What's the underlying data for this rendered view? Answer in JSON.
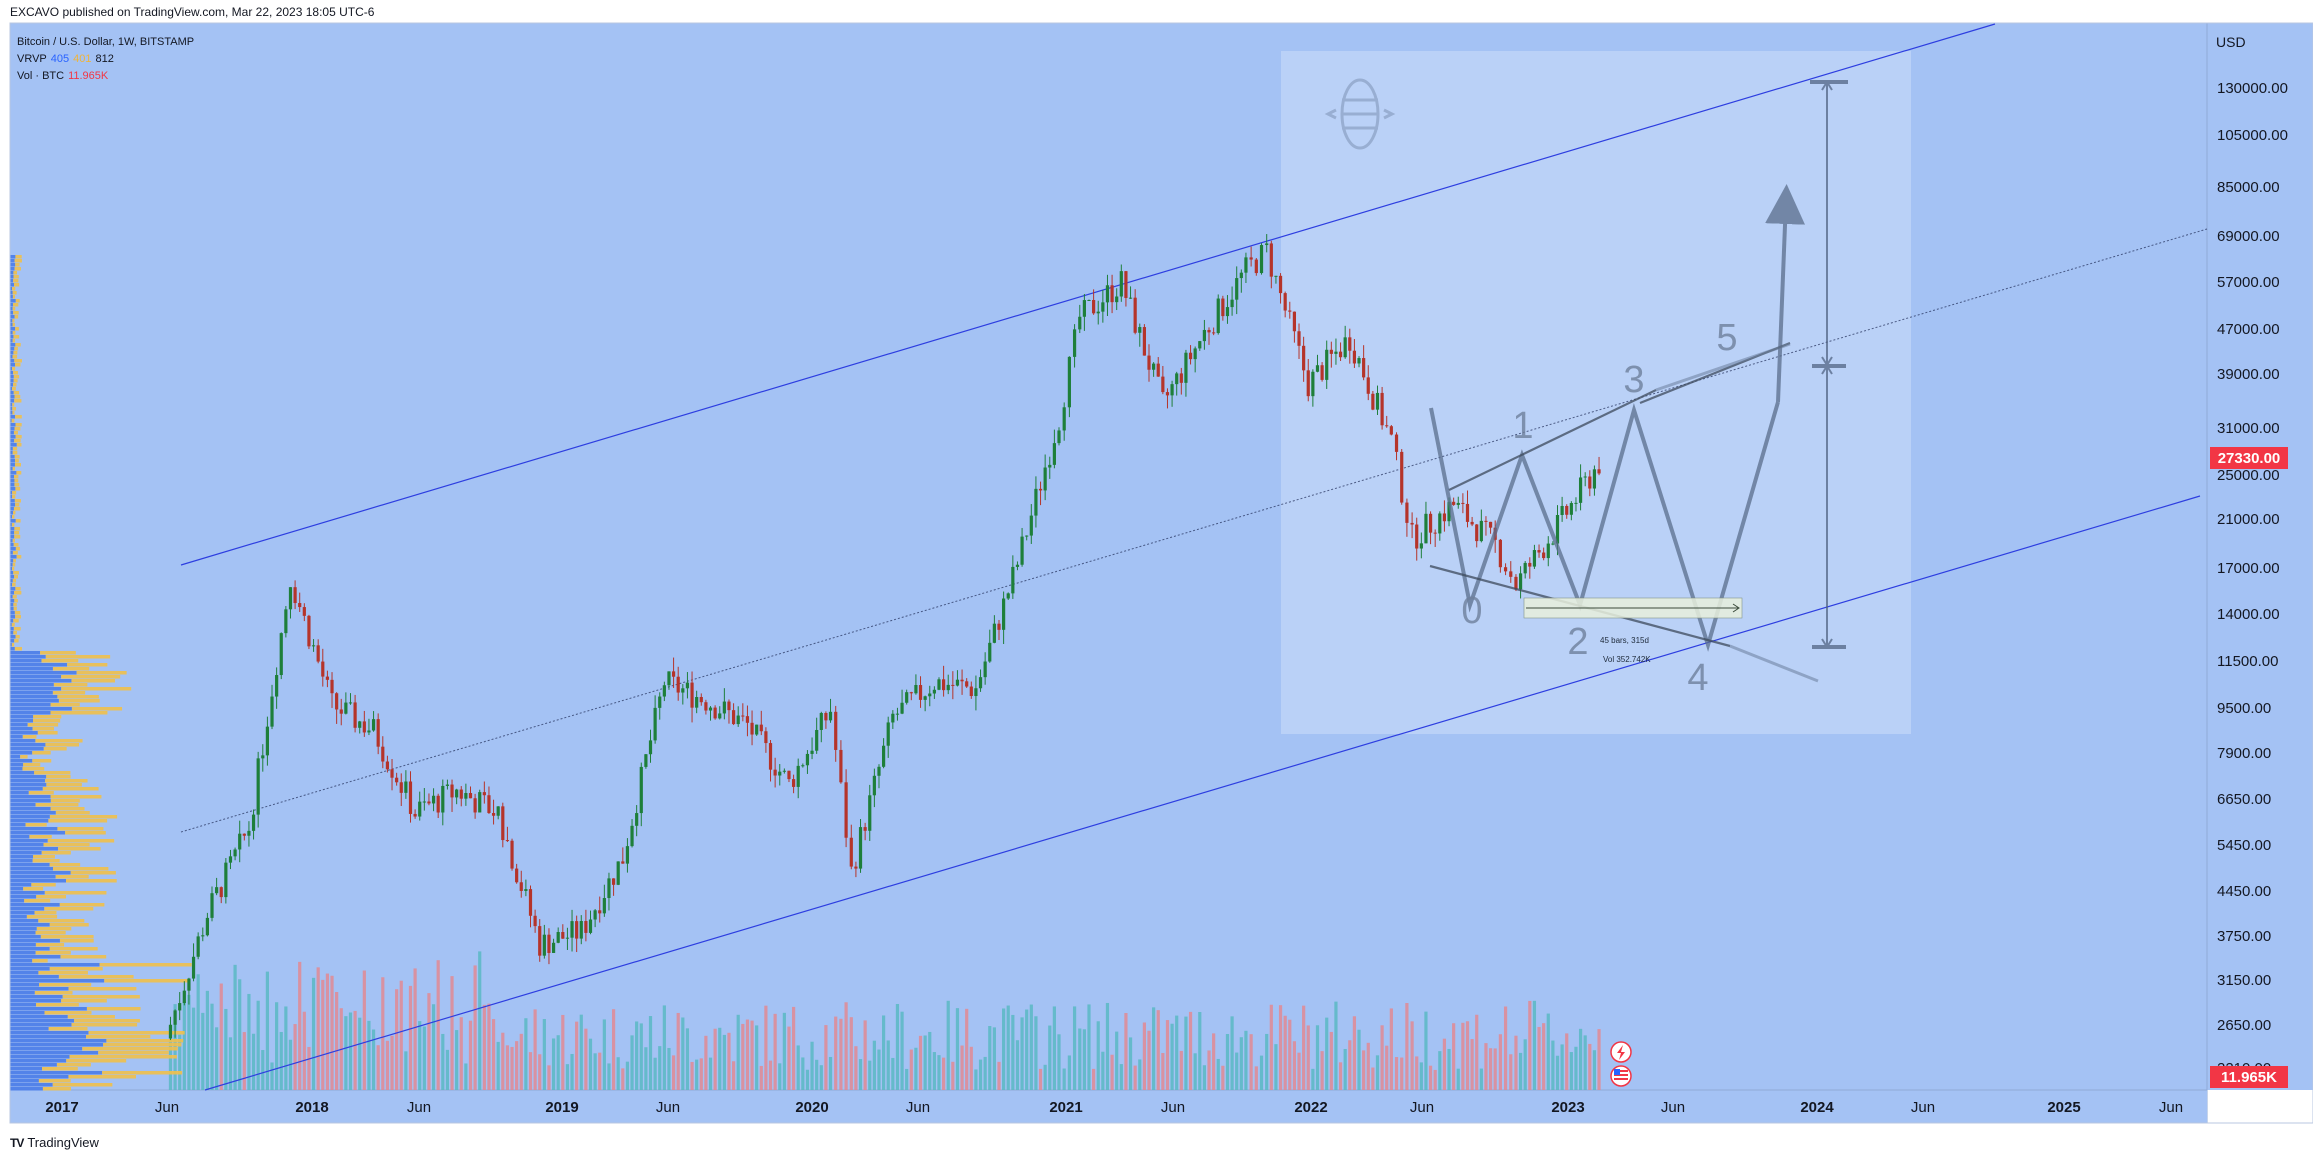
{
  "header": {
    "published": "EXCAVO published on TradingView.com, Mar 22, 2023 18:05 UTC-6"
  },
  "legend": {
    "symbol": "Bitcoin / U.S. Dollar, 1W, BITSTAMP",
    "vrvp_label": "VRVP",
    "vrvp_v1": "405",
    "vrvp_v2": "401",
    "vrvp_v3": "812",
    "vol_label": "Vol · BTC",
    "vol_value": "11.965K"
  },
  "footer": {
    "brand": "TradingView"
  },
  "colors": {
    "background": "#a4c2f4",
    "projection_box": "#bcd3f7",
    "channel_line": "#2d3ee0",
    "candle_up": "#1e7f3a",
    "candle_down": "#b5342a",
    "vol_up": "#5bb8c3",
    "vol_down": "#e28a93",
    "vrvp_up": "#4f7fe8",
    "vrvp_down": "#f0c04b",
    "price_badge": "#f23645"
  },
  "chart_data": {
    "type": "candlestick",
    "title": "Bitcoin / U.S. Dollar, 1W, BITSTAMP",
    "currency_label": "USD",
    "y_scale": "log",
    "y_ticks": [
      "130000.00",
      "105000.00",
      "85000.00",
      "69000.00",
      "57000.00",
      "47000.00",
      "39000.00",
      "31000.00",
      "25000.00",
      "21000.00",
      "17000.00",
      "14000.00",
      "11500.00",
      "9500.00",
      "7900.00",
      "6650.00",
      "5450.00",
      "4450.00",
      "3750.00",
      "3150.00",
      "2650.00",
      "2210.00"
    ],
    "x_ticks": [
      "2017",
      "Jun",
      "2018",
      "Jun",
      "2019",
      "Jun",
      "2020",
      "Jun",
      "2021",
      "Jun",
      "2022",
      "Jun",
      "2023",
      "Jun",
      "2024",
      "Jun",
      "2025",
      "Jun"
    ],
    "last_price": "27330.00",
    "volume_badge": "11.965K",
    "series": [
      {
        "name": "BTC weekly close (approx.)",
        "points": [
          [
            "2017-06",
            2500
          ],
          [
            "2017-08",
            4200
          ],
          [
            "2017-10",
            6000
          ],
          [
            "2017-12",
            17000
          ],
          [
            "2018-02",
            10000
          ],
          [
            "2018-04",
            9000
          ],
          [
            "2018-06",
            6400
          ],
          [
            "2018-08",
            7000
          ],
          [
            "2018-10",
            6400
          ],
          [
            "2018-12",
            3700
          ],
          [
            "2019-02",
            3900
          ],
          [
            "2019-04",
            5300
          ],
          [
            "2019-06",
            11000
          ],
          [
            "2019-08",
            10200
          ],
          [
            "2019-10",
            9200
          ],
          [
            "2019-12",
            7200
          ],
          [
            "2020-02",
            9800
          ],
          [
            "2020-03",
            5000
          ],
          [
            "2020-05",
            9500
          ],
          [
            "2020-07",
            11000
          ],
          [
            "2020-09",
            10700
          ],
          [
            "2020-11",
            18000
          ],
          [
            "2021-01",
            33000
          ],
          [
            "2021-02",
            50000
          ],
          [
            "2021-04",
            58000
          ],
          [
            "2021-06",
            35000
          ],
          [
            "2021-08",
            47000
          ],
          [
            "2021-10",
            61000
          ],
          [
            "2021-11",
            66000
          ],
          [
            "2022-01",
            38000
          ],
          [
            "2022-03",
            46000
          ],
          [
            "2022-05",
            30000
          ],
          [
            "2022-06",
            20000
          ],
          [
            "2022-08",
            23000
          ],
          [
            "2022-10",
            19500
          ],
          [
            "2022-11",
            16500
          ],
          [
            "2023-01",
            21000
          ],
          [
            "2023-03",
            27330
          ]
        ]
      }
    ],
    "annotations": {
      "wave_labels": [
        "0",
        "1",
        "2",
        "3",
        "4",
        "5"
      ],
      "measure_text_1": "45 bars, 315d",
      "measure_text_2": "Vol 352.742K"
    }
  }
}
